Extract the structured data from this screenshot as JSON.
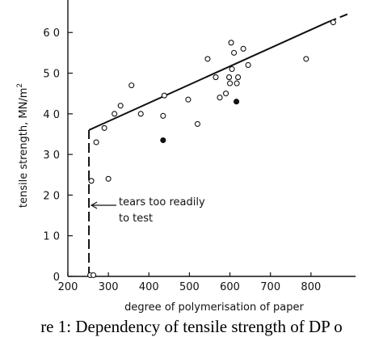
{
  "chart_data": {
    "type": "scatter",
    "xlabel": "degree of polymerisation of paper",
    "ylabel": "tensile strength, MN/m",
    "ylabel_superscript": "2",
    "xlim": [
      200,
      910
    ],
    "ylim": [
      0,
      68
    ],
    "x_ticks": [
      200,
      300,
      400,
      500,
      600,
      700,
      800
    ],
    "x_tick_labels": [
      "200",
      "300",
      "400",
      "500",
      "600",
      "700",
      "800"
    ],
    "y_ticks": [
      0,
      10,
      20,
      30,
      40,
      50,
      60
    ],
    "y_tick_labels": [
      "0",
      "1 0",
      "2 0",
      "3 0",
      "4 0",
      "5 0",
      "6 0"
    ],
    "series": [
      {
        "marker": "open-circle",
        "points": [
          [
            255,
            0.3
          ],
          [
            263,
            0.3
          ],
          [
            258,
            23.5
          ],
          [
            270,
            33
          ],
          [
            300,
            24
          ],
          [
            290,
            36.5
          ],
          [
            315,
            40
          ],
          [
            330,
            42
          ],
          [
            357,
            47
          ],
          [
            380,
            40
          ],
          [
            435,
            39.5
          ],
          [
            438,
            44.5
          ],
          [
            497,
            43.5
          ],
          [
            520,
            37.5
          ],
          [
            545,
            53.5
          ],
          [
            565,
            49
          ],
          [
            575,
            44
          ],
          [
            590,
            45
          ],
          [
            598,
            49
          ],
          [
            605,
            51
          ],
          [
            600,
            47.5
          ],
          [
            603,
            57.5
          ],
          [
            610,
            55
          ],
          [
            617,
            47.5
          ],
          [
            620,
            49
          ],
          [
            633,
            56
          ],
          [
            645,
            52
          ],
          [
            788,
            53.5
          ],
          [
            855,
            62.5
          ]
        ]
      },
      {
        "marker": "filled-circle",
        "points": [
          [
            435,
            33.5
          ],
          [
            616,
            43
          ]
        ]
      }
    ],
    "fit_segments": [
      {
        "style": "solid",
        "points": [
          [
            252,
            36
          ],
          [
            840,
            62.5
          ]
        ]
      },
      {
        "style": "dashed",
        "points": [
          [
            840,
            62.5
          ],
          [
            890,
            64.5
          ]
        ]
      },
      {
        "style": "dashed",
        "points": [
          [
            252,
            0
          ],
          [
            252,
            36
          ]
        ]
      }
    ],
    "annotation": {
      "lines": [
        "tears too readily",
        "to test"
      ],
      "arrow_target": [
        252,
        17.5
      ]
    },
    "colors": {
      "ink": "#111111",
      "background": "#ffffff"
    }
  },
  "caption": "re 1: Dependency of tensile strength of DP o"
}
